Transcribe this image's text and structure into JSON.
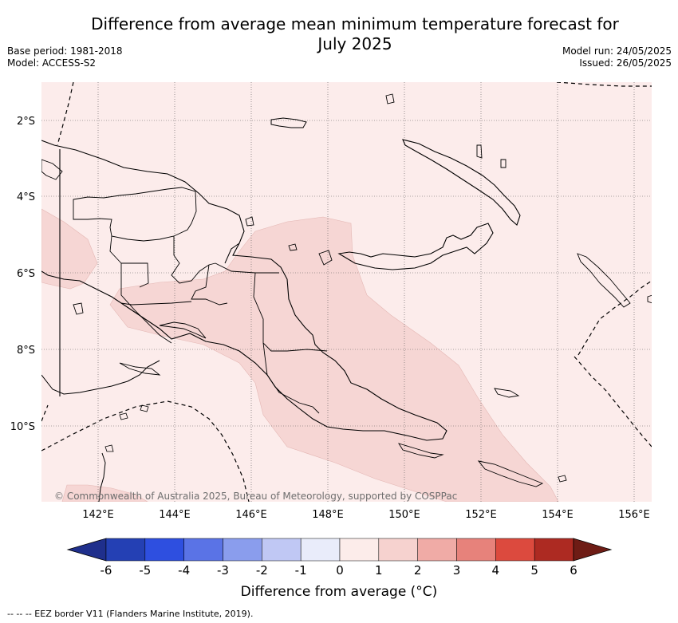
{
  "header": {
    "title_line1": "Difference from average mean minimum temperature forecast for",
    "title_line2": "July 2025",
    "base_period": "Base period: 1981-2018",
    "model": "Model: ACCESS-S2",
    "model_run": "Model run: 24/05/2025",
    "issued": "Issued: 26/05/2025"
  },
  "map": {
    "background_color": "#fceceb",
    "anomaly_fill_color": "#f6d6d4",
    "latitude_labels": [
      "2°S",
      "4°S",
      "6°S",
      "8°S",
      "10°S"
    ],
    "longitude_labels": [
      "142°E",
      "144°E",
      "146°E",
      "148°E",
      "150°E",
      "152°E",
      "154°E",
      "156°E"
    ],
    "gridlines": true,
    "credit": "© Commonwealth of Australia 2025, Bureau of Meteorology, supported by COSPPac"
  },
  "colorbar": {
    "tick_labels": [
      "-6",
      "-5",
      "-4",
      "-3",
      "-2",
      "-1",
      "0",
      "1",
      "2",
      "3",
      "4",
      "5",
      "6"
    ],
    "colors": [
      "#1f2f8c",
      "#2440b4",
      "#2e4fe0",
      "#5a73e6",
      "#8a9ded",
      "#c0c8f4",
      "#e9ecfa",
      "#fcecea",
      "#f6d2cf",
      "#f0aba6",
      "#e7827b",
      "#dc4a3e",
      "#ad2a22",
      "#6e1c15"
    ],
    "title": "Difference from average (°C)"
  },
  "footnote": "-- -- -- EEZ border V11 (Flanders Marine Institute, 2019)."
}
